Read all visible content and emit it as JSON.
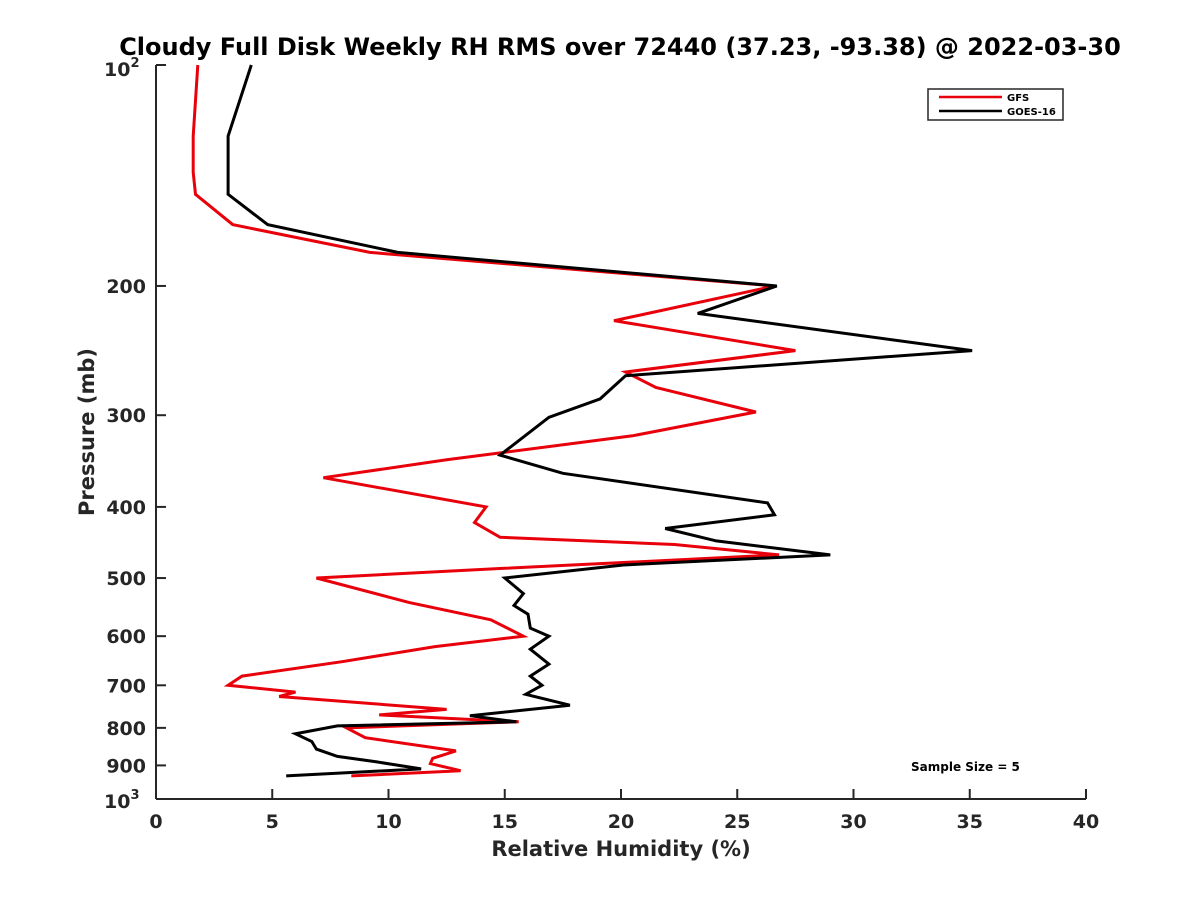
{
  "chart_data": {
    "type": "line",
    "title": "Cloudy Full Disk Weekly RH RMS over 72440 (37.23, -93.38) @ 2022-03-30",
    "xlabel": "Relative Humidity (%)",
    "ylabel": "Pressure (mb)",
    "xlim": [
      0,
      40
    ],
    "ylim": [
      100,
      1000
    ],
    "y_scale": "log",
    "y_reversed": true,
    "x_ticks": [
      0,
      5,
      10,
      15,
      20,
      25,
      30,
      35,
      40
    ],
    "x_tick_labels": [
      "0",
      "5",
      "10",
      "15",
      "20",
      "25",
      "30",
      "35",
      "40"
    ],
    "y_ticks": [
      200,
      300,
      400,
      500,
      600,
      700,
      800,
      900
    ],
    "y_tick_labels": [
      "200",
      "300",
      "400",
      "500",
      "600",
      "700",
      "800",
      "900"
    ],
    "y_edge_labels": {
      "top_base": "10",
      "top_exp": "2",
      "bottom_base": "10",
      "bottom_exp": "3"
    },
    "grid": false,
    "legend_position": "top-right",
    "annotation": "Sample Size = 5",
    "series": [
      {
        "name": "GFS",
        "color": "#e8000b",
        "points": [
          [
            1.8,
            100
          ],
          [
            1.6,
            125
          ],
          [
            1.6,
            140
          ],
          [
            1.7,
            150
          ],
          [
            3.3,
            165
          ],
          [
            9.2,
            180
          ],
          [
            26.6,
            200
          ],
          [
            19.7,
            223
          ],
          [
            27.5,
            245
          ],
          [
            20.2,
            262
          ],
          [
            21.5,
            275
          ],
          [
            25.8,
            297
          ],
          [
            20.5,
            320
          ],
          [
            12.5,
            345
          ],
          [
            7.2,
            365
          ],
          [
            14.2,
            400
          ],
          [
            13.7,
            420
          ],
          [
            14.8,
            440
          ],
          [
            22.3,
            450
          ],
          [
            26.8,
            465
          ],
          [
            15.0,
            485
          ],
          [
            6.9,
            500
          ],
          [
            10.9,
            540
          ],
          [
            14.4,
            570
          ],
          [
            15.8,
            600
          ],
          [
            12.0,
            620
          ],
          [
            8.0,
            650
          ],
          [
            3.7,
            680
          ],
          [
            3.1,
            700
          ],
          [
            6.0,
            715
          ],
          [
            5.3,
            725
          ],
          [
            12.5,
            755
          ],
          [
            9.6,
            768
          ],
          [
            15.6,
            785
          ],
          [
            8.2,
            800
          ],
          [
            9.0,
            825
          ],
          [
            12.9,
            860
          ],
          [
            11.9,
            880
          ],
          [
            11.8,
            895
          ],
          [
            13.1,
            915
          ],
          [
            8.4,
            930
          ]
        ]
      },
      {
        "name": "GOES-16",
        "color": "#000000",
        "points": [
          [
            4.1,
            100
          ],
          [
            3.1,
            125
          ],
          [
            3.1,
            150
          ],
          [
            4.8,
            165
          ],
          [
            10.4,
            180
          ],
          [
            26.7,
            200
          ],
          [
            23.3,
            218
          ],
          [
            35.1,
            245
          ],
          [
            20.2,
            265
          ],
          [
            19.1,
            285
          ],
          [
            16.9,
            302
          ],
          [
            14.8,
            340
          ],
          [
            17.5,
            360
          ],
          [
            26.3,
            395
          ],
          [
            26.6,
            410
          ],
          [
            21.9,
            428
          ],
          [
            24.1,
            445
          ],
          [
            29.0,
            465
          ],
          [
            20.1,
            480
          ],
          [
            15.0,
            500
          ],
          [
            15.8,
            525
          ],
          [
            15.4,
            545
          ],
          [
            16.0,
            560
          ],
          [
            16.1,
            585
          ],
          [
            16.9,
            600
          ],
          [
            16.1,
            625
          ],
          [
            16.9,
            655
          ],
          [
            16.1,
            680
          ],
          [
            16.6,
            700
          ],
          [
            15.9,
            720
          ],
          [
            17.8,
            745
          ],
          [
            13.5,
            770
          ],
          [
            15.5,
            785
          ],
          [
            7.8,
            795
          ],
          [
            6.0,
            815
          ],
          [
            6.7,
            835
          ],
          [
            6.9,
            855
          ],
          [
            7.8,
            875
          ],
          [
            9.5,
            890
          ],
          [
            11.4,
            910
          ],
          [
            5.6,
            930
          ]
        ]
      }
    ]
  }
}
